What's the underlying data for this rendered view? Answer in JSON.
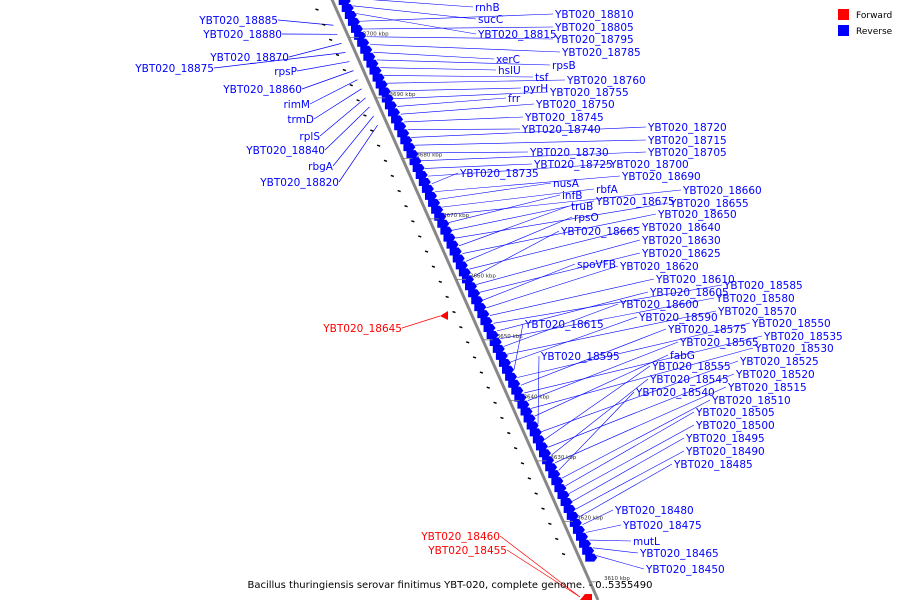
{
  "caption": "Bacillus thuringiensis serovar finitimus YBT-020, complete genome. - 0..5355490",
  "legend": [
    {
      "label": "Forward",
      "color": "#ff0000"
    },
    {
      "label": "Reverse",
      "color": "#0000ff"
    }
  ],
  "colors": {
    "forward": "#ff0000",
    "reverse": "#0000ff",
    "backbone": "#888888",
    "tick": "#000000"
  },
  "ticks": [
    "3700 kbp",
    "3690 kbp",
    "3680 kbp",
    "3670 kbp",
    "3660 kbp",
    "3650 kbp",
    "3640 kbp",
    "3630 kbp",
    "3620 kbp",
    "3610 kbp"
  ],
  "left_labels": [
    {
      "text": "YBT020_18885",
      "strand": "reverse"
    },
    {
      "text": "YBT020_18880",
      "strand": "reverse"
    },
    {
      "text": "YBT020_18870",
      "strand": "reverse"
    },
    {
      "text": "YBT020_18875",
      "strand": "reverse"
    },
    {
      "text": "rpsP",
      "strand": "reverse"
    },
    {
      "text": "YBT020_18860",
      "strand": "reverse"
    },
    {
      "text": "rimM",
      "strand": "reverse"
    },
    {
      "text": "trmD",
      "strand": "reverse"
    },
    {
      "text": "rplS",
      "strand": "reverse"
    },
    {
      "text": "YBT020_18840",
      "strand": "reverse"
    },
    {
      "text": "rbgA",
      "strand": "reverse"
    },
    {
      "text": "YBT020_18820",
      "strand": "reverse"
    },
    {
      "text": "YBT020_18645",
      "strand": "forward"
    },
    {
      "text": "YBT020_18460",
      "strand": "forward"
    },
    {
      "text": "YBT020_18455",
      "strand": "forward"
    }
  ],
  "right_labels": [
    {
      "text": "rnhB",
      "strand": "reverse"
    },
    {
      "text": "sucC",
      "strand": "reverse"
    },
    {
      "text": "YBT020_18815",
      "strand": "reverse"
    },
    {
      "text": "YBT020_18810",
      "strand": "reverse"
    },
    {
      "text": "YBT020_18805",
      "strand": "reverse"
    },
    {
      "text": "YBT020_18795",
      "strand": "reverse"
    },
    {
      "text": "YBT020_18785",
      "strand": "reverse"
    },
    {
      "text": "xerC",
      "strand": "reverse"
    },
    {
      "text": "rpsB",
      "strand": "reverse"
    },
    {
      "text": "hslU",
      "strand": "reverse"
    },
    {
      "text": "tsf",
      "strand": "reverse"
    },
    {
      "text": "YBT020_18760",
      "strand": "reverse"
    },
    {
      "text": "pyrH",
      "strand": "reverse"
    },
    {
      "text": "YBT020_18755",
      "strand": "reverse"
    },
    {
      "text": "frr",
      "strand": "reverse"
    },
    {
      "text": "YBT020_18750",
      "strand": "reverse"
    },
    {
      "text": "YBT020_18745",
      "strand": "reverse"
    },
    {
      "text": "YBT020_18740",
      "strand": "reverse"
    },
    {
      "text": "YBT020_18720",
      "strand": "reverse"
    },
    {
      "text": "YBT020_18715",
      "strand": "reverse"
    },
    {
      "text": "YBT020_18730",
      "strand": "reverse"
    },
    {
      "text": "YBT020_18705",
      "strand": "reverse"
    },
    {
      "text": "YBT020_18725",
      "strand": "reverse"
    },
    {
      "text": "YBT020_18700",
      "strand": "reverse"
    },
    {
      "text": "YBT020_18735",
      "strand": "reverse"
    },
    {
      "text": "YBT020_18690",
      "strand": "reverse"
    },
    {
      "text": "nusA",
      "strand": "reverse"
    },
    {
      "text": "rbfA",
      "strand": "reverse"
    },
    {
      "text": "YBT020_18660",
      "strand": "reverse"
    },
    {
      "text": "infB",
      "strand": "reverse"
    },
    {
      "text": "YBT020_18675",
      "strand": "reverse"
    },
    {
      "text": "YBT020_18655",
      "strand": "reverse"
    },
    {
      "text": "truB",
      "strand": "reverse"
    },
    {
      "text": "YBT020_18650",
      "strand": "reverse"
    },
    {
      "text": "rpsO",
      "strand": "reverse"
    },
    {
      "text": "YBT020_18640",
      "strand": "reverse"
    },
    {
      "text": "YBT020_18665",
      "strand": "reverse"
    },
    {
      "text": "YBT020_18630",
      "strand": "reverse"
    },
    {
      "text": "YBT020_18625",
      "strand": "reverse"
    },
    {
      "text": "spoVFB",
      "strand": "reverse"
    },
    {
      "text": "YBT020_18620",
      "strand": "reverse"
    },
    {
      "text": "YBT020_18610",
      "strand": "reverse"
    },
    {
      "text": "YBT020_18585",
      "strand": "reverse"
    },
    {
      "text": "YBT020_18605",
      "strand": "reverse"
    },
    {
      "text": "YBT020_18580",
      "strand": "reverse"
    },
    {
      "text": "YBT020_18600",
      "strand": "reverse"
    },
    {
      "text": "YBT020_18570",
      "strand": "reverse"
    },
    {
      "text": "YBT020_18590",
      "strand": "reverse"
    },
    {
      "text": "YBT020_18615",
      "strand": "reverse"
    },
    {
      "text": "YBT020_18550",
      "strand": "reverse"
    },
    {
      "text": "YBT020_18575",
      "strand": "reverse"
    },
    {
      "text": "YBT020_18535",
      "strand": "reverse"
    },
    {
      "text": "YBT020_18565",
      "strand": "reverse"
    },
    {
      "text": "YBT020_18530",
      "strand": "reverse"
    },
    {
      "text": "fabG",
      "strand": "reverse"
    },
    {
      "text": "YBT020_18595",
      "strand": "reverse"
    },
    {
      "text": "YBT020_18525",
      "strand": "reverse"
    },
    {
      "text": "YBT020_18555",
      "strand": "reverse"
    },
    {
      "text": "YBT020_18520",
      "strand": "reverse"
    },
    {
      "text": "YBT020_18545",
      "strand": "reverse"
    },
    {
      "text": "YBT020_18515",
      "strand": "reverse"
    },
    {
      "text": "YBT020_18540",
      "strand": "reverse"
    },
    {
      "text": "YBT020_18510",
      "strand": "reverse"
    },
    {
      "text": "YBT020_18505",
      "strand": "reverse"
    },
    {
      "text": "YBT020_18500",
      "strand": "reverse"
    },
    {
      "text": "YBT020_18495",
      "strand": "reverse"
    },
    {
      "text": "YBT020_18490",
      "strand": "reverse"
    },
    {
      "text": "YBT020_18485",
      "strand": "reverse"
    },
    {
      "text": "YBT020_18480",
      "strand": "reverse"
    },
    {
      "text": "YBT020_18475",
      "strand": "reverse"
    },
    {
      "text": "mutL",
      "strand": "reverse"
    },
    {
      "text": "YBT020_18465",
      "strand": "reverse"
    },
    {
      "text": "YBT020_18450",
      "strand": "reverse"
    }
  ]
}
